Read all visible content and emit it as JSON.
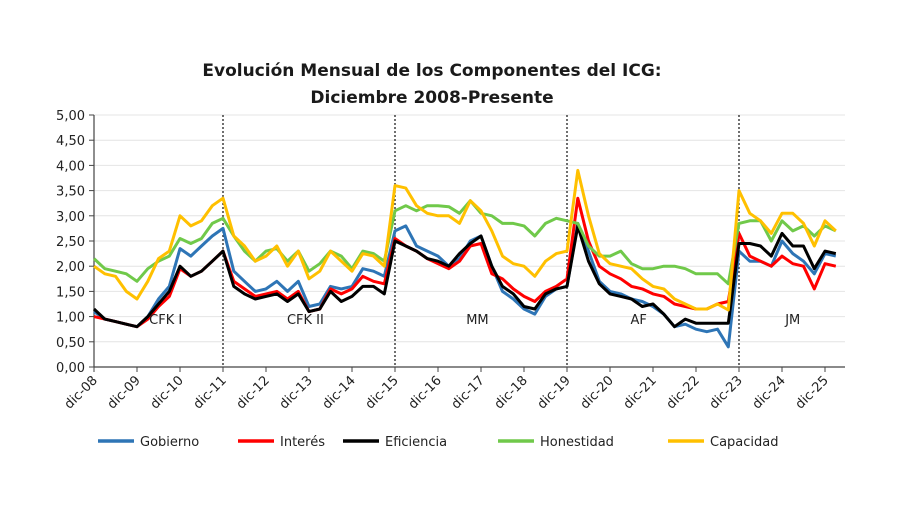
{
  "chart_data": {
    "type": "line",
    "title": [
      "Evolución Mensual de los Componentes del ICG:",
      "Diciembre 2008-Presente"
    ],
    "xlabel": "",
    "ylabel": "",
    "ylim": [
      0,
      5
    ],
    "yticks": [
      "0,00",
      "0,50",
      "1,00",
      "1,50",
      "2,00",
      "2,50",
      "3,00",
      "3,50",
      "4,00",
      "4,50",
      "5,00"
    ],
    "xticks": [
      {
        "date": "2008-12",
        "label": "dic-08"
      },
      {
        "date": "2009-12",
        "label": "dic-09"
      },
      {
        "date": "2010-12",
        "label": "dic-10"
      },
      {
        "date": "2011-12",
        "label": "dic-11"
      },
      {
        "date": "2012-12",
        "label": "dic-12"
      },
      {
        "date": "2013-12",
        "label": "dic-13"
      },
      {
        "date": "2014-12",
        "label": "dic-14"
      },
      {
        "date": "2015-12",
        "label": "dic-15"
      },
      {
        "date": "2016-12",
        "label": "dic-16"
      },
      {
        "date": "2017-12",
        "label": "dic-17"
      },
      {
        "date": "2018-12",
        "label": "dic-18"
      },
      {
        "date": "2019-12",
        "label": "dic-19"
      },
      {
        "date": "2020-12",
        "label": "dic-20"
      },
      {
        "date": "2021-12",
        "label": "dic-21"
      },
      {
        "date": "2022-12",
        "label": "dic-22"
      },
      {
        "date": "2023-12",
        "label": "dic-23"
      },
      {
        "date": "2024-12",
        "label": "dic-24"
      },
      {
        "date": "2025-12",
        "label": "dic-25"
      }
    ],
    "grid": true,
    "legend_position": "bottom",
    "period_dividers": [
      "2011-12",
      "2015-12",
      "2019-12",
      "2023-12"
    ],
    "annotations": [
      {
        "text": "CFK I",
        "date": "2010-08",
        "y": 0.85
      },
      {
        "text": "CFK II",
        "date": "2013-11",
        "y": 0.85
      },
      {
        "text": "MM",
        "date": "2017-11",
        "y": 0.85
      },
      {
        "text": "AF",
        "date": "2021-08",
        "y": 0.85
      },
      {
        "text": "JM",
        "date": "2025-03",
        "y": 0.85
      }
    ],
    "x": [
      "2008-12",
      "2009-03",
      "2009-06",
      "2009-09",
      "2009-12",
      "2010-03",
      "2010-06",
      "2010-09",
      "2010-12",
      "2011-03",
      "2011-06",
      "2011-09",
      "2011-12",
      "2012-03",
      "2012-06",
      "2012-09",
      "2012-12",
      "2013-03",
      "2013-06",
      "2013-09",
      "2013-12",
      "2014-03",
      "2014-06",
      "2014-09",
      "2014-12",
      "2015-03",
      "2015-06",
      "2015-09",
      "2015-12",
      "2016-03",
      "2016-06",
      "2016-09",
      "2016-12",
      "2017-03",
      "2017-06",
      "2017-09",
      "2017-12",
      "2018-03",
      "2018-06",
      "2018-09",
      "2018-12",
      "2019-03",
      "2019-06",
      "2019-09",
      "2019-12",
      "2020-03",
      "2020-06",
      "2020-09",
      "2020-12",
      "2021-03",
      "2021-06",
      "2021-09",
      "2021-12",
      "2022-03",
      "2022-06",
      "2022-09",
      "2022-12",
      "2023-03",
      "2023-06",
      "2023-09",
      "2023-12",
      "2024-03",
      "2024-06",
      "2024-09",
      "2024-12",
      "2025-03",
      "2025-06",
      "2025-09",
      "2025-12",
      "2026-03"
    ],
    "series": [
      {
        "name": "Gobierno",
        "color": "#2e75b6",
        "values": [
          1.1,
          0.95,
          0.9,
          0.85,
          0.8,
          1.0,
          1.35,
          1.6,
          2.35,
          2.2,
          2.4,
          2.6,
          2.75,
          1.9,
          1.7,
          1.5,
          1.55,
          1.7,
          1.5,
          1.7,
          1.2,
          1.25,
          1.6,
          1.55,
          1.6,
          1.95,
          1.9,
          1.8,
          2.7,
          2.8,
          2.4,
          2.3,
          2.2,
          2.0,
          2.15,
          2.5,
          2.6,
          2.0,
          1.5,
          1.35,
          1.15,
          1.05,
          1.4,
          1.55,
          1.6,
          2.85,
          2.3,
          1.7,
          1.5,
          1.45,
          1.35,
          1.3,
          1.2,
          1.05,
          0.8,
          0.85,
          0.75,
          0.7,
          0.75,
          0.4,
          2.3,
          2.1,
          2.1,
          2.0,
          2.5,
          2.25,
          2.1,
          1.85,
          2.25,
          2.2
        ]
      },
      {
        "name": "Interés",
        "color": "#ff0000",
        "values": [
          1.0,
          0.95,
          0.9,
          0.85,
          0.8,
          0.95,
          1.2,
          1.4,
          1.95,
          1.8,
          1.9,
          2.1,
          2.3,
          1.7,
          1.55,
          1.4,
          1.45,
          1.5,
          1.35,
          1.5,
          1.1,
          1.15,
          1.55,
          1.45,
          1.55,
          1.8,
          1.7,
          1.65,
          2.55,
          2.4,
          2.3,
          2.15,
          2.05,
          1.95,
          2.1,
          2.4,
          2.45,
          1.85,
          1.75,
          1.55,
          1.4,
          1.3,
          1.5,
          1.6,
          1.75,
          3.35,
          2.5,
          2.0,
          1.85,
          1.75,
          1.6,
          1.55,
          1.45,
          1.4,
          1.25,
          1.2,
          1.15,
          1.15,
          1.25,
          1.3,
          2.65,
          2.2,
          2.1,
          2.0,
          2.2,
          2.05,
          2.0,
          1.55,
          2.05,
          2.0
        ]
      },
      {
        "name": "Eficiencia",
        "color": "#000000",
        "values": [
          1.15,
          0.95,
          0.9,
          0.85,
          0.8,
          1.0,
          1.25,
          1.5,
          2.0,
          1.8,
          1.9,
          2.1,
          2.3,
          1.6,
          1.45,
          1.35,
          1.4,
          1.45,
          1.3,
          1.45,
          1.1,
          1.15,
          1.5,
          1.3,
          1.4,
          1.6,
          1.6,
          1.45,
          2.5,
          2.4,
          2.3,
          2.15,
          2.1,
          2.0,
          2.25,
          2.45,
          2.6,
          2.0,
          1.6,
          1.45,
          1.2,
          1.15,
          1.45,
          1.55,
          1.6,
          2.8,
          2.1,
          1.65,
          1.45,
          1.4,
          1.35,
          1.2,
          1.25,
          1.05,
          0.8,
          0.95,
          0.87,
          0.87,
          0.87,
          0.87,
          2.45,
          2.45,
          2.4,
          2.2,
          2.65,
          2.4,
          2.4,
          1.95,
          2.3,
          2.25
        ]
      },
      {
        "name": "Honestidad",
        "color": "#70c94a",
        "values": [
          2.15,
          1.95,
          1.9,
          1.85,
          1.7,
          1.95,
          2.1,
          2.2,
          2.55,
          2.45,
          2.55,
          2.85,
          2.95,
          2.6,
          2.3,
          2.1,
          2.3,
          2.35,
          2.1,
          2.3,
          1.9,
          2.05,
          2.3,
          2.2,
          1.95,
          2.3,
          2.25,
          2.1,
          3.1,
          3.2,
          3.1,
          3.2,
          3.2,
          3.18,
          3.05,
          3.3,
          3.05,
          3.0,
          2.85,
          2.85,
          2.8,
          2.6,
          2.85,
          2.95,
          2.9,
          2.85,
          2.4,
          2.2,
          2.2,
          2.3,
          2.05,
          1.95,
          1.95,
          2.0,
          2.0,
          1.95,
          1.85,
          1.85,
          1.85,
          1.65,
          2.85,
          2.9,
          2.9,
          2.5,
          2.9,
          2.7,
          2.8,
          2.6,
          2.8,
          2.7
        ]
      },
      {
        "name": "Capacidad",
        "color": "#ffc000",
        "values": [
          2.0,
          1.85,
          1.8,
          1.5,
          1.35,
          1.7,
          2.15,
          2.3,
          3.0,
          2.8,
          2.9,
          3.2,
          3.35,
          2.6,
          2.4,
          2.1,
          2.2,
          2.4,
          2.0,
          2.3,
          1.75,
          1.9,
          2.3,
          2.1,
          1.9,
          2.25,
          2.2,
          2.0,
          3.6,
          3.55,
          3.2,
          3.05,
          3.0,
          3.0,
          2.85,
          3.3,
          3.1,
          2.7,
          2.2,
          2.05,
          2.0,
          1.8,
          2.1,
          2.25,
          2.3,
          3.9,
          3.0,
          2.25,
          2.05,
          2.0,
          1.95,
          1.75,
          1.6,
          1.55,
          1.35,
          1.25,
          1.15,
          1.15,
          1.25,
          1.13,
          3.5,
          3.05,
          2.9,
          2.65,
          3.05,
          3.05,
          2.85,
          2.4,
          2.9,
          2.7
        ]
      }
    ]
  }
}
